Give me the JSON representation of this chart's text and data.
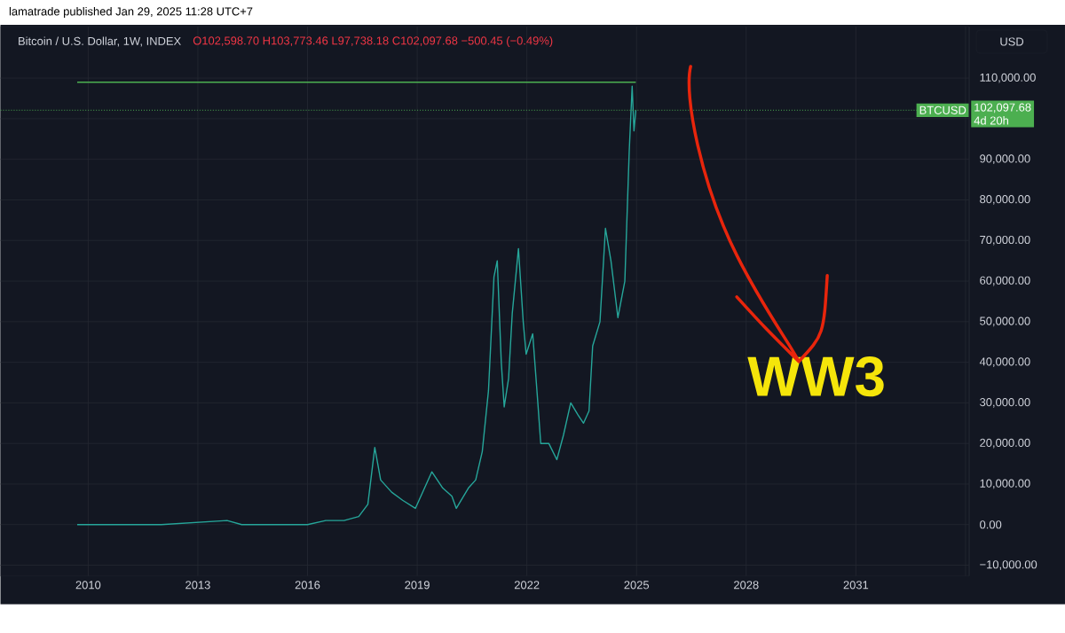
{
  "chart_data": {
    "type": "line",
    "title": "Bitcoin / U.S. Dollar, 1W, INDEX",
    "annotations": [
      "lamatrade published Jan 29, 2025 11:28 UTC+7",
      "O102,598.70 H103,773.46 L97,738.18 C102,097.68 −500.45 (−0.49%)",
      "USD",
      "102,097.68",
      "4d 20h",
      "WW3"
    ],
    "series": [
      {
        "color": "#26a69a",
        "x": [
          2009.7,
          2012.0,
          2013.8,
          2014.2,
          2015.0,
          2016.0,
          2016.5,
          2017.0,
          2017.4,
          2017.65,
          2017.84,
          2018.0,
          2018.3,
          2018.6,
          2018.95,
          2019.4,
          2019.7,
          2019.95,
          2020.07,
          2020.4,
          2020.6,
          2020.78,
          2020.95,
          2021.1,
          2021.19,
          2021.3,
          2021.38,
          2021.5,
          2021.6,
          2021.77,
          2021.9,
          2021.98,
          2022.16,
          2022.3,
          2022.38,
          2022.6,
          2022.82,
          2023.0,
          2023.2,
          2023.4,
          2023.55,
          2023.7,
          2023.8,
          2024.0,
          2024.15,
          2024.3,
          2024.49,
          2024.68,
          2024.8,
          2024.88,
          2024.93,
          2024.98
        ],
        "values": [
          0,
          0,
          1000,
          0,
          0,
          0,
          1000,
          1000,
          2000,
          5000,
          19000,
          11000,
          8000,
          6000,
          4000,
          13000,
          9000,
          7000,
          4000,
          9000,
          11000,
          18000,
          33000,
          61000,
          65000,
          40000,
          29000,
          36000,
          52000,
          68000,
          50000,
          42000,
          47000,
          30000,
          20000,
          20000,
          16000,
          22000,
          30000,
          27000,
          25000,
          28000,
          44000,
          50000,
          73000,
          65000,
          51000,
          60000,
          92000,
          108000,
          97000,
          102097.68
        ]
      },
      {
        "color": "#4caf50",
        "x": [
          2009.7,
          2024.98
        ],
        "values": [
          109000,
          109000
        ]
      }
    ],
    "xlim": [
      2007.6,
      2034.1
    ],
    "xticks": [
      2010,
      2013,
      2016,
      2019,
      2022,
      2025,
      2028,
      2031,
      {
        "value": 2034,
        "label": null
      }
    ],
    "ylim": [
      -12660,
      122700
    ],
    "yticks": [
      {
        "value": -10000,
        "label": "−10,000.00"
      },
      {
        "value": 0,
        "label": "0.00"
      },
      {
        "value": 10000,
        "label": "10,000.00"
      },
      {
        "value": 20000,
        "label": "20,000.00"
      },
      {
        "value": 30000,
        "label": "30,000.00"
      },
      {
        "value": 40000,
        "label": "40,000.00"
      },
      {
        "value": 50000,
        "label": "50,000.00"
      },
      {
        "value": 60000,
        "label": "60,000.00"
      },
      {
        "value": 70000,
        "label": "70,000.00"
      },
      {
        "value": 80000,
        "label": "80,000.00"
      },
      {
        "value": 90000,
        "label": "90,000.00"
      },
      {
        "value": 100000,
        "label": null
      },
      {
        "value": 110000,
        "label": "110,000.00"
      }
    ],
    "grid": true,
    "marker": "none",
    "line_style": "solid",
    "ref_lines": [
      {
        "axis": "y",
        "value": 102097.68,
        "label": "BTCUSD",
        "color": "#4caf50",
        "line_style": "dotted"
      }
    ]
  }
}
